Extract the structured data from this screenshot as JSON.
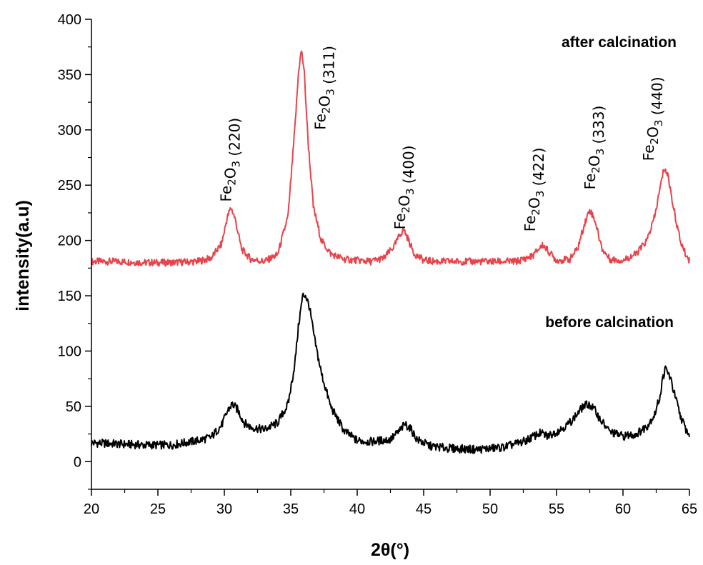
{
  "chart_data": {
    "type": "line",
    "title": "",
    "xlabel": "2θ(°)",
    "ylabel": "intensity(a.u)",
    "xlim": [
      20,
      65
    ],
    "ylim": [
      -25,
      400
    ],
    "x_ticks": [
      20,
      25,
      30,
      35,
      40,
      45,
      50,
      55,
      60,
      65
    ],
    "y_ticks": [
      0,
      50,
      100,
      150,
      200,
      250,
      300,
      350,
      400
    ],
    "grid": false,
    "series": [
      {
        "name": "after calcination",
        "color": "#e8434a",
        "x": [
          20,
          22,
          24,
          26,
          28,
          29,
          29.8,
          30.2,
          30.5,
          30.8,
          31.3,
          32,
          33,
          34,
          34.8,
          35.3,
          35.6,
          35.8,
          36.0,
          36.3,
          36.7,
          37.3,
          38,
          39,
          40,
          41,
          42,
          42.8,
          43.2,
          43.5,
          43.8,
          44.3,
          45,
          46,
          48,
          50,
          52,
          53.2,
          53.7,
          54.0,
          54.4,
          55,
          56,
          56.6,
          57.1,
          57.5,
          57.9,
          58.4,
          59,
          60,
          61,
          61.8,
          62.4,
          62.8,
          63.1,
          63.4,
          63.8,
          64.3,
          64.7,
          65
        ],
        "y": [
          181,
          181,
          180,
          180,
          181,
          184,
          197,
          220,
          230,
          220,
          192,
          183,
          181,
          187,
          222,
          300,
          355,
          372,
          355,
          290,
          230,
          200,
          188,
          183,
          182,
          181,
          184,
          195,
          205,
          210,
          202,
          188,
          182,
          181,
          181,
          181,
          181,
          186,
          193,
          196,
          190,
          182,
          183,
          193,
          215,
          228,
          218,
          193,
          183,
          182,
          188,
          200,
          222,
          248,
          266,
          258,
          230,
          200,
          188,
          182
        ]
      },
      {
        "name": "before calcination",
        "color": "#000000",
        "x": [
          20,
          22,
          24,
          26,
          27,
          28,
          29,
          29.8,
          30.3,
          30.6,
          31.0,
          31.5,
          32,
          33,
          34,
          34.8,
          35.3,
          35.6,
          35.9,
          36.1,
          36.4,
          36.8,
          37.3,
          38,
          39,
          40,
          41,
          42.5,
          43.2,
          43.6,
          44.0,
          44.5,
          45.5,
          47,
          49,
          51,
          52.5,
          53.3,
          53.8,
          54.3,
          55,
          55.8,
          56.5,
          57.0,
          57.4,
          57.8,
          58.3,
          59,
          60,
          61,
          61.8,
          62.4,
          62.8,
          63.0,
          63.2,
          63.5,
          63.9,
          64.3,
          64.7,
          65
        ],
        "y": [
          17,
          16,
          15,
          15,
          17,
          19,
          22,
          33,
          47,
          52,
          47,
          35,
          31,
          29,
          35,
          52,
          88,
          125,
          150,
          151,
          140,
          110,
          80,
          50,
          28,
          19,
          18,
          20,
          28,
          34,
          30,
          20,
          14,
          12,
          11,
          13,
          18,
          23,
          26,
          23,
          27,
          33,
          42,
          50,
          52,
          48,
          38,
          27,
          23,
          25,
          32,
          43,
          60,
          76,
          84,
          78,
          60,
          42,
          30,
          24
        ]
      }
    ],
    "annotations": [
      {
        "text": "Fe2O3 (220)",
        "x": 30.5,
        "y": 235,
        "rotation": -90
      },
      {
        "text": "Fe2O3 (311)",
        "x": 37.6,
        "y": 300,
        "rotation": -90
      },
      {
        "text": "Fe2O3 (400)",
        "x": 43.6,
        "y": 210,
        "rotation": -90
      },
      {
        "text": "Fe2O3 (422)",
        "x": 53.4,
        "y": 208,
        "rotation": -90
      },
      {
        "text": "Fe2O3 (333)",
        "x": 57.9,
        "y": 246,
        "rotation": -90
      },
      {
        "text": "Fe2O3 (440)",
        "x": 62.3,
        "y": 272,
        "rotation": -90
      }
    ]
  }
}
